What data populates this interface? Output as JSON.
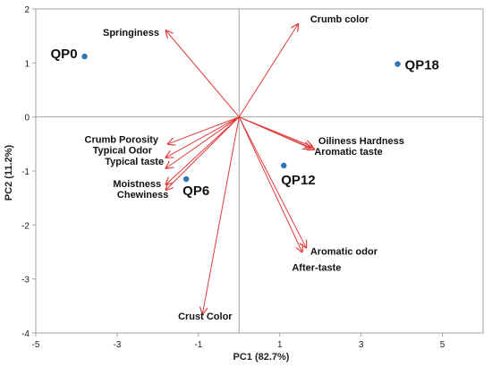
{
  "chart_data": {
    "type": "scatter",
    "subtype": "pca-biplot",
    "xlabel": "PC1 (82.7%)",
    "ylabel": "PC2 (11.2%)",
    "xlim": [
      -5,
      6
    ],
    "ylim": [
      -4,
      2
    ],
    "x_ticks": [
      -5,
      -3,
      -1,
      1,
      3,
      5
    ],
    "y_ticks": [
      2,
      1,
      0,
      -1,
      -2,
      -3,
      -4
    ],
    "grid": false,
    "colors": {
      "points": "#2E75B6",
      "vectors": "#E03C3C",
      "axes": "#A6A6A6"
    },
    "points": [
      {
        "label": "QP0",
        "x": -3.8,
        "y": 1.12
      },
      {
        "label": "QP18",
        "x": 3.9,
        "y": 0.98
      },
      {
        "label": "QP6",
        "x": -1.3,
        "y": -1.15
      },
      {
        "label": "QP12",
        "x": 1.1,
        "y": -0.9
      }
    ],
    "vectors": [
      {
        "label": "Springiness",
        "x": -1.8,
        "y": 1.6
      },
      {
        "label": "Crumb color",
        "x": 1.45,
        "y": 1.72
      },
      {
        "label": "Crumb Porosity",
        "x": -1.75,
        "y": -0.5
      },
      {
        "label": "Typical Odor",
        "x": -1.8,
        "y": -0.75
      },
      {
        "label": "Typical taste",
        "x": -1.8,
        "y": -0.95
      },
      {
        "label": "Moistness",
        "x": -1.8,
        "y": -1.25
      },
      {
        "label": "Chewiness",
        "x": -1.8,
        "y": -1.35
      },
      {
        "label": "Oiliness",
        "x": 1.8,
        "y": -0.55
      },
      {
        "label": "Hardness",
        "x": 1.85,
        "y": -0.6
      },
      {
        "label": "Aromatic taste",
        "x": 1.75,
        "y": -0.58
      },
      {
        "label": "Aromatic odor",
        "x": 1.65,
        "y": -2.42
      },
      {
        "label": "After-taste",
        "x": 1.55,
        "y": -2.5
      },
      {
        "label": "Crust Color",
        "x": -0.9,
        "y": -3.65
      }
    ],
    "vector_labels": [
      {
        "text": "Springiness",
        "x": -3.35,
        "y": 1.5
      },
      {
        "text": "Crumb color",
        "x": 1.75,
        "y": 1.75
      },
      {
        "text": "Crumb Porosity",
        "x": -3.8,
        "y": -0.48
      },
      {
        "text": "Typical Odor",
        "x": -3.6,
        "y": -0.68
      },
      {
        "text": "Typical taste",
        "x": -3.3,
        "y": -0.88
      },
      {
        "text": "Moistness",
        "x": -3.1,
        "y": -1.3
      },
      {
        "text": "Chewiness",
        "x": -3.0,
        "y": -1.5
      },
      {
        "text": "Oiliness Hardness",
        "x": 1.95,
        "y": -0.5
      },
      {
        "text": "Aromatic taste",
        "x": 1.85,
        "y": -0.7
      },
      {
        "text": "Aromatic odor",
        "x": 1.75,
        "y": -2.55
      },
      {
        "text": "After-taste",
        "x": 1.3,
        "y": -2.85
      },
      {
        "text": "Crust Color",
        "x": -1.5,
        "y": -3.75
      }
    ]
  }
}
